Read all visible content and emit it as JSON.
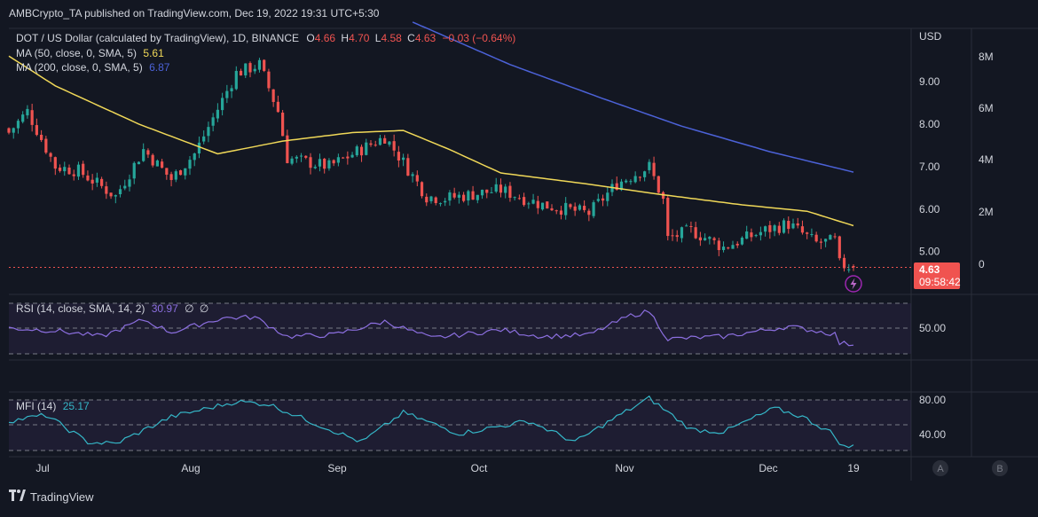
{
  "header": {
    "publish_text": "AMBCrypto_TA published on TradingView.com, Dec 19, 2022 19:31 UTC+5:30"
  },
  "footer": {
    "brand": "TradingView"
  },
  "main_pane": {
    "legend": {
      "symbol": "DOT / US Dollar (calculated by TradingView), 1D, BINANCE",
      "o_label": "O",
      "o": "4.66",
      "h_label": "H",
      "h": "4.70",
      "l_label": "L",
      "l": "4.58",
      "c_label": "C",
      "c": "4.63",
      "change": "−0.03 (−0.64%)"
    },
    "ma50": {
      "label": "MA (50, close, 0, SMA, 5)",
      "value": "5.61",
      "color": "#f0d858"
    },
    "ma200": {
      "label": "MA (200, close, 0, SMA, 5)",
      "value": "6.87",
      "color": "#4c62d8"
    },
    "currency": "USD",
    "price_ticks": [
      "9.00",
      "8.00",
      "7.00",
      "6.00",
      "5.00"
    ],
    "volume_ticks": [
      "8M",
      "6M",
      "4M",
      "2M",
      "0"
    ],
    "last_price_badge": {
      "price": "4.63",
      "countdown": "09:58:42",
      "color": "#f05350"
    }
  },
  "rsi_pane": {
    "label": "RSI (14, close, SMA, 14, 2)",
    "value": "30.97",
    "extra1": "∅",
    "extra2": "∅",
    "tick": "50.00",
    "color": "#8c6fe0"
  },
  "mfi_pane": {
    "label": "MFI (14)",
    "value": "25.17",
    "ticks": [
      "80.00",
      "40.00"
    ],
    "color": "#35b6c7"
  },
  "time_axis": {
    "labels": [
      "Jul",
      "Aug",
      "Sep",
      "Oct",
      "Nov",
      "Dec",
      "19"
    ],
    "badge_a": "A",
    "badge_b": "B"
  },
  "colors": {
    "up": "#26a69a",
    "down": "#ef5350",
    "background": "#131722"
  },
  "chart_data": {
    "type": "candlestick",
    "symbol": "DOT/USD",
    "x_range": [
      "Jun 20 2022",
      "Dec 19 2022"
    ],
    "ylim": [
      4.2,
      10.2
    ],
    "close_anchors": [
      {
        "date": "Jun 20",
        "close": 7.8
      },
      {
        "date": "Jun 24",
        "close": 8.3
      },
      {
        "date": "Jun 30",
        "close": 7.0
      },
      {
        "date": "Jul 5",
        "close": 6.9
      },
      {
        "date": "Jul 13",
        "close": 6.3
      },
      {
        "date": "Jul 19",
        "close": 7.4
      },
      {
        "date": "Jul 25",
        "close": 6.7
      },
      {
        "date": "Jul 30",
        "close": 7.3
      },
      {
        "date": "Aug 8",
        "close": 9.2
      },
      {
        "date": "Aug 13",
        "close": 9.4
      },
      {
        "date": "Aug 17",
        "close": 8.3
      },
      {
        "date": "Aug 19",
        "close": 7.2
      },
      {
        "date": "Aug 28",
        "close": 7.0
      },
      {
        "date": "Sep 9",
        "close": 7.7
      },
      {
        "date": "Sep 13",
        "close": 7.1
      },
      {
        "date": "Sep 18",
        "close": 6.3
      },
      {
        "date": "Sep 22",
        "close": 6.25
      },
      {
        "date": "Oct 4",
        "close": 6.45
      },
      {
        "date": "Oct 13",
        "close": 6.1
      },
      {
        "date": "Oct 23",
        "close": 5.9
      },
      {
        "date": "Oct 29",
        "close": 6.6
      },
      {
        "date": "Nov 5",
        "close": 7.0
      },
      {
        "date": "Nov 8",
        "close": 6.2
      },
      {
        "date": "Nov 9",
        "close": 5.3
      },
      {
        "date": "Nov 14",
        "close": 5.5
      },
      {
        "date": "Nov 21",
        "close": 5.1
      },
      {
        "date": "Nov 30",
        "close": 5.5
      },
      {
        "date": "Dec 5",
        "close": 5.65
      },
      {
        "date": "Dec 11",
        "close": 5.2
      },
      {
        "date": "Dec 15",
        "close": 5.25
      },
      {
        "date": "Dec 16",
        "close": 4.7
      },
      {
        "date": "Dec 19",
        "close": 4.63
      }
    ],
    "ma50_points": [
      {
        "date": "Jun 20",
        "value": 9.6
      },
      {
        "date": "Jun 30",
        "value": 8.9
      },
      {
        "date": "Jul 18",
        "value": 8.0
      },
      {
        "date": "Aug 4",
        "value": 7.3
      },
      {
        "date": "Aug 18",
        "value": 7.6
      },
      {
        "date": "Sep 2",
        "value": 7.8
      },
      {
        "date": "Sep 13",
        "value": 7.85
      },
      {
        "date": "Sep 23",
        "value": 7.4
      },
      {
        "date": "Oct 4",
        "value": 6.85
      },
      {
        "date": "Oct 22",
        "value": 6.6
      },
      {
        "date": "Nov 7",
        "value": 6.35
      },
      {
        "date": "Nov 25",
        "value": 6.1
      },
      {
        "date": "Dec 9",
        "value": 5.95
      },
      {
        "date": "Dec 19",
        "value": 5.61
      }
    ],
    "ma200_points": [
      {
        "date": "Sep 15",
        "value": 10.4
      },
      {
        "date": "Oct 6",
        "value": 9.4
      },
      {
        "date": "Oct 26",
        "value": 8.6
      },
      {
        "date": "Nov 12",
        "value": 7.95
      },
      {
        "date": "Dec 1",
        "value": 7.35
      },
      {
        "date": "Dec 19",
        "value": 6.87
      }
    ],
    "rsi_points": [
      {
        "date": "Jun 20",
        "value": 50
      },
      {
        "date": "Jun 30",
        "value": 47
      },
      {
        "date": "Jul 10",
        "value": 40
      },
      {
        "date": "Jul 19",
        "value": 60
      },
      {
        "date": "Jul 25",
        "value": 45
      },
      {
        "date": "Aug 5",
        "value": 62
      },
      {
        "date": "Aug 12",
        "value": 63
      },
      {
        "date": "Aug 19",
        "value": 40
      },
      {
        "date": "Aug 29",
        "value": 42
      },
      {
        "date": "Sep 9",
        "value": 58
      },
      {
        "date": "Sep 19",
        "value": 38
      },
      {
        "date": "Oct 4",
        "value": 48
      },
      {
        "date": "Oct 13",
        "value": 40
      },
      {
        "date": "Oct 23",
        "value": 42
      },
      {
        "date": "Nov 1",
        "value": 65
      },
      {
        "date": "Nov 5",
        "value": 70
      },
      {
        "date": "Nov 9",
        "value": 37
      },
      {
        "date": "Nov 21",
        "value": 40
      },
      {
        "date": "Dec 5",
        "value": 52
      },
      {
        "date": "Dec 15",
        "value": 43
      },
      {
        "date": "Dec 16",
        "value": 32
      },
      {
        "date": "Dec 19",
        "value": 30.97
      }
    ],
    "mfi_points": [
      {
        "date": "Jun 20",
        "value": 55
      },
      {
        "date": "Jun 28",
        "value": 62
      },
      {
        "date": "Jul 7",
        "value": 30
      },
      {
        "date": "Jul 13",
        "value": 28
      },
      {
        "date": "Jul 25",
        "value": 60
      },
      {
        "date": "Aug 8",
        "value": 78
      },
      {
        "date": "Aug 15",
        "value": 75
      },
      {
        "date": "Aug 25",
        "value": 52
      },
      {
        "date": "Sep 4",
        "value": 30
      },
      {
        "date": "Sep 13",
        "value": 65
      },
      {
        "date": "Sep 25",
        "value": 40
      },
      {
        "date": "Oct 10",
        "value": 55
      },
      {
        "date": "Oct 20",
        "value": 30
      },
      {
        "date": "Oct 29",
        "value": 60
      },
      {
        "date": "Nov 5",
        "value": 82
      },
      {
        "date": "Nov 14",
        "value": 45
      },
      {
        "date": "Nov 21",
        "value": 42
      },
      {
        "date": "Dec 2",
        "value": 70
      },
      {
        "date": "Dec 8",
        "value": 60
      },
      {
        "date": "Dec 14",
        "value": 42
      },
      {
        "date": "Dec 17",
        "value": 24
      },
      {
        "date": "Dec 19",
        "value": 25.17
      }
    ],
    "current_price": 4.63
  }
}
